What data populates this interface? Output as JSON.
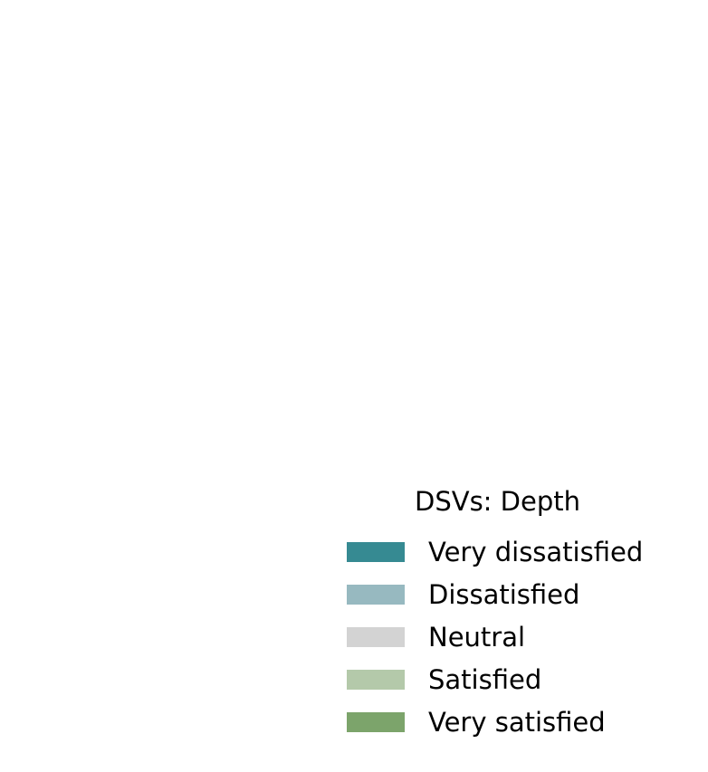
{
  "chart_data": {
    "type": "bar",
    "title": "",
    "legend": {
      "title": "DSVs: Depth",
      "placement": "bottom-right",
      "items": [
        {
          "label": "Very dissatisfied",
          "color": "#368a92"
        },
        {
          "label": "Dissatisfied",
          "color": "#97b9c0"
        },
        {
          "label": "Neutral",
          "color": "#d3d3d3"
        },
        {
          "label": "Satisfied",
          "color": "#b4c9aa"
        },
        {
          "label": "Very satisfied",
          "color": "#7ca46b"
        }
      ]
    },
    "categories": [],
    "series": [
      {
        "name": "Very dissatisfied",
        "values": []
      },
      {
        "name": "Dissatisfied",
        "values": []
      },
      {
        "name": "Neutral",
        "values": []
      },
      {
        "name": "Satisfied",
        "values": []
      },
      {
        "name": "Very satisfied",
        "values": []
      }
    ]
  }
}
